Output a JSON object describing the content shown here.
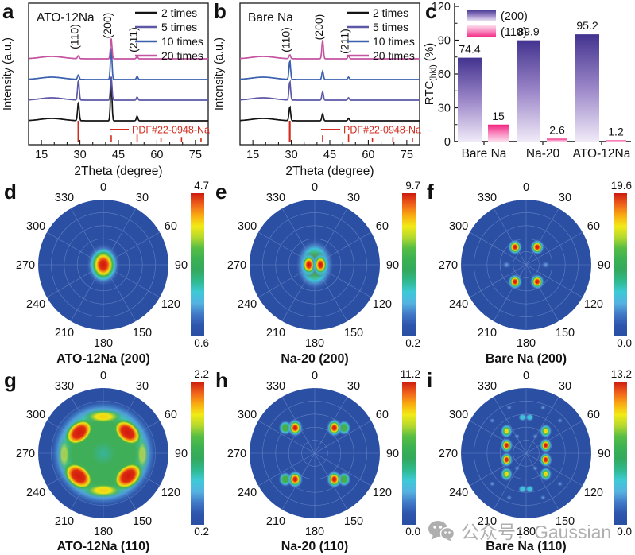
{
  "palette": {
    "figure_background": "#ffffff",
    "pole_background": "#2a4fa3",
    "grid_line": "#93a9de",
    "reference_red": "#d42a1e",
    "colorbar": [
      "#cc1a0f",
      "#f0611b",
      "#f9a911",
      "#f2ea16",
      "#b4d92e",
      "#55bd45",
      "#3bb153",
      "#33a95e",
      "#2fb98e",
      "#3ec9d8",
      "#55b2e0",
      "#4179c6",
      "#2d55ac",
      "#2a4fa3"
    ]
  },
  "watermark": {
    "text": "公众号：Gaussian"
  },
  "chart_data": [
    {
      "panel": "a",
      "type": "line",
      "subtype": "xrd",
      "sample": "ATO-12Na",
      "xlabel": "2Theta (degree)",
      "ylabel": "Intensity (a.u.)",
      "x_range": [
        10,
        80
      ],
      "x_ticks": [
        15,
        30,
        45,
        60,
        75
      ],
      "peak_labels": [
        {
          "text": "(110)",
          "x": 29.4,
          "y": 46
        },
        {
          "text": "(200)",
          "x": 42.2,
          "y": 32
        },
        {
          "text": "(211)",
          "x": 52.3,
          "y": 50
        }
      ],
      "legend": [
        {
          "label": "2 times",
          "color": "#141414"
        },
        {
          "label": "5 times",
          "color": "#5c58a6"
        },
        {
          "label": "10 times",
          "color": "#3a60ae"
        },
        {
          "label": "20 times",
          "color": "#c454a0"
        }
      ],
      "reference": {
        "label": "PDF#22-0948-Na",
        "color": "#d42a1e",
        "sticks": [
          {
            "x": 29.4,
            "h": 1.0
          },
          {
            "x": 42.2,
            "h": 0.3
          },
          {
            "x": 52.3,
            "h": 0.34
          },
          {
            "x": 61.6,
            "h": 0.18
          },
          {
            "x": 69.6,
            "h": 0.22
          },
          {
            "x": 77.2,
            "h": 0.18
          }
        ]
      },
      "curves": [
        {
          "label": "2 times",
          "color": "#141414",
          "peaks": [
            {
              "x": 29.4,
              "h": 24
            },
            {
              "x": 42.2,
              "h": 50
            },
            {
              "x": 52.3,
              "h": 6
            }
          ]
        },
        {
          "label": "5 times",
          "color": "#5c58a6",
          "peaks": [
            {
              "x": 29.4,
              "h": 26
            },
            {
              "x": 42.2,
              "h": 30
            },
            {
              "x": 52.3,
              "h": 4
            }
          ]
        },
        {
          "label": "10 times",
          "color": "#3a60ae",
          "peaks": [
            {
              "x": 29.4,
              "h": 6
            },
            {
              "x": 42.2,
              "h": 40
            },
            {
              "x": 52.3,
              "h": 4
            }
          ]
        },
        {
          "label": "20 times",
          "color": "#c454a0",
          "peaks": [
            {
              "x": 29.4,
              "h": 4
            },
            {
              "x": 42.2,
              "h": 26
            },
            {
              "x": 52.3,
              "h": 3
            }
          ]
        }
      ]
    },
    {
      "panel": "b",
      "type": "line",
      "subtype": "xrd",
      "sample": "Bare Na",
      "xlabel": "2Theta (degree)",
      "ylabel": "Intensity (a.u.)",
      "x_range": [
        10,
        80
      ],
      "x_ticks": [
        15,
        30,
        45,
        60,
        75
      ],
      "peak_labels": [
        {
          "text": "(110)",
          "x": 29.4,
          "y": 50
        },
        {
          "text": "(200)",
          "x": 42.2,
          "y": 34
        },
        {
          "text": "(211)",
          "x": 52.3,
          "y": 52
        }
      ],
      "legend": [
        {
          "label": "2 times",
          "color": "#141414"
        },
        {
          "label": "5 times",
          "color": "#5c58a6"
        },
        {
          "label": "10 times",
          "color": "#3a60ae"
        },
        {
          "label": "20 times",
          "color": "#c454a0"
        }
      ],
      "reference": {
        "label": "PDF#22-0948-Na",
        "color": "#d42a1e",
        "sticks": [
          {
            "x": 29.4,
            "h": 1.0
          },
          {
            "x": 42.2,
            "h": 0.3
          },
          {
            "x": 52.3,
            "h": 0.34
          },
          {
            "x": 61.6,
            "h": 0.18
          },
          {
            "x": 69.6,
            "h": 0.22
          },
          {
            "x": 77.2,
            "h": 0.18
          }
        ]
      },
      "curves": [
        {
          "label": "2 times",
          "color": "#141414",
          "peaks": [
            {
              "x": 29.4,
              "h": 18
            },
            {
              "x": 42.2,
              "h": 9
            },
            {
              "x": 52.3,
              "h": 3
            }
          ]
        },
        {
          "label": "5 times",
          "color": "#5c58a6",
          "peaks": [
            {
              "x": 29.4,
              "h": 24
            },
            {
              "x": 42.2,
              "h": 11
            },
            {
              "x": 52.3,
              "h": 3
            }
          ]
        },
        {
          "label": "10 times",
          "color": "#3a60ae",
          "peaks": [
            {
              "x": 29.4,
              "h": 24
            },
            {
              "x": 42.2,
              "h": 11
            },
            {
              "x": 52.3,
              "h": 3
            }
          ]
        },
        {
          "label": "20 times",
          "color": "#c454a0",
          "peaks": [
            {
              "x": 29.4,
              "h": 5
            },
            {
              "x": 42.2,
              "h": 24
            },
            {
              "x": 52.3,
              "h": 4
            }
          ]
        }
      ]
    },
    {
      "panel": "c",
      "type": "bar",
      "ylabel": "RTC(hkl) (%)",
      "ylabel_parts": {
        "main": "RTC",
        "sub": "(hkl)",
        "unit": " (%)"
      },
      "ylim": [
        0,
        120
      ],
      "y_ticks": [
        0,
        30,
        60,
        90,
        120
      ],
      "categories": [
        "Bare Na",
        "Na-20",
        "ATO-12Na"
      ],
      "series": [
        {
          "name": "(200)",
          "values": [
            74.4,
            89.9,
            95.2
          ],
          "labels": [
            "74.4",
            "89.9",
            "95.2"
          ],
          "gradient": [
            "#43338f",
            "#9b86c8",
            "#f0eaf8"
          ]
        },
        {
          "name": "(110)",
          "values": [
            15,
            2.6,
            1.2
          ],
          "labels": [
            "15",
            "2.6",
            "1.2"
          ],
          "gradient": [
            "#f2227f",
            "#f887bd",
            "#fcdcec"
          ]
        }
      ]
    },
    {
      "panel": "d",
      "type": "heatmap",
      "subtype": "pole-figure",
      "title": "ATO-12Na (200)",
      "scale_max": "4.7",
      "scale_min": "0.6",
      "angle_ticks": [
        "0",
        "30",
        "60",
        "90",
        "120",
        "150",
        "180",
        "210",
        "240",
        "270",
        "300",
        "330"
      ],
      "blobs": [
        {
          "x": 0,
          "y": 0,
          "rx": 0.27,
          "ry": 0.34,
          "type": "hot"
        }
      ]
    },
    {
      "panel": "e",
      "type": "heatmap",
      "subtype": "pole-figure",
      "title": "Na-20 (200)",
      "scale_max": "9.7",
      "scale_min": "0.2",
      "angle_ticks": [
        "0",
        "30",
        "60",
        "90",
        "120",
        "150",
        "180",
        "210",
        "240",
        "270",
        "300",
        "330"
      ],
      "blobs": [
        {
          "x": 0,
          "y": 0,
          "rx": 0.3,
          "ry": 0.4,
          "type": "green"
        },
        {
          "x": -0.09,
          "y": 0,
          "rx": 0.14,
          "ry": 0.2,
          "type": "hot"
        },
        {
          "x": 0.09,
          "y": 0,
          "rx": 0.14,
          "ry": 0.2,
          "type": "hot"
        }
      ]
    },
    {
      "panel": "f",
      "type": "heatmap",
      "subtype": "pole-figure",
      "title": "Bare Na (200)",
      "scale_max": "19.6",
      "scale_min": "0.0",
      "angle_ticks": [
        "0",
        "30",
        "60",
        "90",
        "120",
        "150",
        "180",
        "210",
        "240",
        "270",
        "300",
        "330"
      ],
      "blobs": [
        {
          "x": -0.17,
          "y": -0.27,
          "rx": 0.12,
          "ry": 0.13,
          "type": "hot"
        },
        {
          "x": 0.17,
          "y": -0.27,
          "rx": 0.12,
          "ry": 0.13,
          "type": "hot"
        },
        {
          "x": -0.17,
          "y": 0.26,
          "rx": 0.12,
          "ry": 0.13,
          "type": "hot"
        },
        {
          "x": 0.17,
          "y": 0.26,
          "rx": 0.12,
          "ry": 0.13,
          "type": "hot"
        },
        {
          "x": -0.3,
          "y": 0,
          "rx": 0.07,
          "ry": 0.06,
          "type": "faint"
        },
        {
          "x": 0.3,
          "y": 0,
          "rx": 0.07,
          "ry": 0.06,
          "type": "faint"
        }
      ]
    },
    {
      "panel": "g",
      "type": "heatmap",
      "subtype": "pole-figure",
      "title": "ATO-12Na (110)",
      "scale_max": "2.2",
      "scale_min": "0.2",
      "angle_ticks": [
        "0",
        "30",
        "60",
        "90",
        "120",
        "150",
        "180",
        "210",
        "240",
        "270",
        "300",
        "330"
      ],
      "blobs": [
        {
          "x": 0,
          "y": 0,
          "rx": 0.84,
          "ry": 0.84,
          "type": "disc"
        },
        {
          "x": 0,
          "y": -0.56,
          "rx": 0.3,
          "ry": 0.11,
          "type": "warmarc"
        },
        {
          "x": 0,
          "y": 0.57,
          "rx": 0.3,
          "ry": 0.11,
          "type": "warmarc"
        },
        {
          "x": -0.6,
          "y": 0.02,
          "rx": 0.1,
          "ry": 0.26,
          "type": "warmarc",
          "o": 0.55
        },
        {
          "x": 0.6,
          "y": 0.02,
          "rx": 0.1,
          "ry": 0.26,
          "type": "warmarc",
          "o": 0.55
        },
        {
          "x": -0.37,
          "y": -0.32,
          "rx": 0.25,
          "ry": 0.17,
          "rot": -40,
          "type": "hotbig"
        },
        {
          "x": 0.37,
          "y": -0.32,
          "rx": 0.25,
          "ry": 0.17,
          "rot": 40,
          "type": "hotbig"
        },
        {
          "x": -0.38,
          "y": 0.35,
          "rx": 0.26,
          "ry": 0.18,
          "rot": 40,
          "type": "hotbig"
        },
        {
          "x": 0.38,
          "y": 0.35,
          "rx": 0.26,
          "ry": 0.18,
          "rot": -40,
          "type": "hotbig"
        }
      ]
    },
    {
      "panel": "h",
      "type": "heatmap",
      "subtype": "pole-figure",
      "title": "Na-20 (110)",
      "scale_max": "11.2",
      "scale_min": "0.0",
      "angle_ticks": [
        "0",
        "30",
        "60",
        "90",
        "120",
        "150",
        "180",
        "210",
        "240",
        "270",
        "300",
        "330"
      ],
      "blobs": [
        {
          "x": -0.45,
          "y": -0.39,
          "rx": 0.11,
          "ry": 0.12,
          "type": "green"
        },
        {
          "x": 0.45,
          "y": -0.39,
          "rx": 0.11,
          "ry": 0.12,
          "type": "green"
        },
        {
          "x": -0.45,
          "y": 0.4,
          "rx": 0.11,
          "ry": 0.12,
          "type": "green"
        },
        {
          "x": 0.45,
          "y": 0.4,
          "rx": 0.11,
          "ry": 0.12,
          "type": "green"
        },
        {
          "x": -0.3,
          "y": -0.39,
          "rx": 0.13,
          "ry": 0.15,
          "type": "hot"
        },
        {
          "x": 0.3,
          "y": -0.39,
          "rx": 0.13,
          "ry": 0.15,
          "type": "hot"
        },
        {
          "x": -0.3,
          "y": 0.4,
          "rx": 0.13,
          "ry": 0.15,
          "type": "hot"
        },
        {
          "x": 0.3,
          "y": 0.4,
          "rx": 0.13,
          "ry": 0.15,
          "type": "hot"
        }
      ]
    },
    {
      "panel": "i",
      "type": "heatmap",
      "subtype": "pole-figure",
      "title": "Bare Na (110)",
      "scale_max": "13.2",
      "scale_min": "0.0",
      "angle_ticks": [
        "0",
        "30",
        "60",
        "90",
        "120",
        "150",
        "180",
        "210",
        "240",
        "270",
        "300",
        "330"
      ],
      "blobs": [
        {
          "x": -0.3,
          "y": -0.34,
          "rx": 0.1,
          "ry": 0.115,
          "type": "warm"
        },
        {
          "x": 0.3,
          "y": -0.34,
          "rx": 0.1,
          "ry": 0.115,
          "type": "warm"
        },
        {
          "x": -0.3,
          "y": 0.32,
          "rx": 0.1,
          "ry": 0.115,
          "type": "warm"
        },
        {
          "x": 0.3,
          "y": 0.32,
          "rx": 0.1,
          "ry": 0.115,
          "type": "warm"
        },
        {
          "x": -0.3,
          "y": -0.12,
          "rx": 0.105,
          "ry": 0.125,
          "type": "hot"
        },
        {
          "x": 0.3,
          "y": -0.12,
          "rx": 0.105,
          "ry": 0.125,
          "type": "hot"
        },
        {
          "x": -0.3,
          "y": 0.1,
          "rx": 0.105,
          "ry": 0.125,
          "type": "hot"
        },
        {
          "x": 0.3,
          "y": 0.1,
          "rx": 0.105,
          "ry": 0.125,
          "type": "hot"
        },
        {
          "x": -0.055,
          "y": -0.55,
          "rx": 0.068,
          "ry": 0.062,
          "type": "cyan"
        },
        {
          "x": 0.055,
          "y": -0.55,
          "rx": 0.068,
          "ry": 0.062,
          "type": "cyan"
        },
        {
          "x": -0.055,
          "y": 0.55,
          "rx": 0.068,
          "ry": 0.062,
          "type": "cyan"
        },
        {
          "x": 0.055,
          "y": 0.55,
          "rx": 0.068,
          "ry": 0.062,
          "type": "cyan"
        },
        {
          "x": -0.14,
          "y": -0.26,
          "rx": 0.05,
          "ry": 0.045,
          "type": "faint"
        },
        {
          "x": 0.14,
          "y": -0.26,
          "rx": 0.05,
          "ry": 0.045,
          "type": "faint"
        },
        {
          "x": -0.14,
          "y": 0.23,
          "rx": 0.05,
          "ry": 0.045,
          "type": "faint"
        },
        {
          "x": 0.14,
          "y": 0.23,
          "rx": 0.05,
          "ry": 0.045,
          "type": "faint"
        },
        {
          "x": -0.52,
          "y": -0.5,
          "rx": 0.05,
          "ry": 0.045,
          "type": "faint"
        },
        {
          "x": 0.52,
          "y": -0.5,
          "rx": 0.05,
          "ry": 0.045,
          "type": "faint"
        },
        {
          "x": -0.52,
          "y": 0.47,
          "rx": 0.05,
          "ry": 0.045,
          "type": "faint"
        },
        {
          "x": 0.52,
          "y": 0.47,
          "rx": 0.05,
          "ry": 0.045,
          "type": "faint"
        },
        {
          "x": -0.26,
          "y": -0.7,
          "rx": 0.05,
          "ry": 0.045,
          "type": "faint"
        },
        {
          "x": 0.26,
          "y": -0.7,
          "rx": 0.05,
          "ry": 0.045,
          "type": "faint"
        },
        {
          "x": -0.26,
          "y": 0.68,
          "rx": 0.05,
          "ry": 0.045,
          "type": "faint"
        },
        {
          "x": 0.26,
          "y": 0.68,
          "rx": 0.05,
          "ry": 0.045,
          "type": "faint"
        }
      ]
    }
  ]
}
